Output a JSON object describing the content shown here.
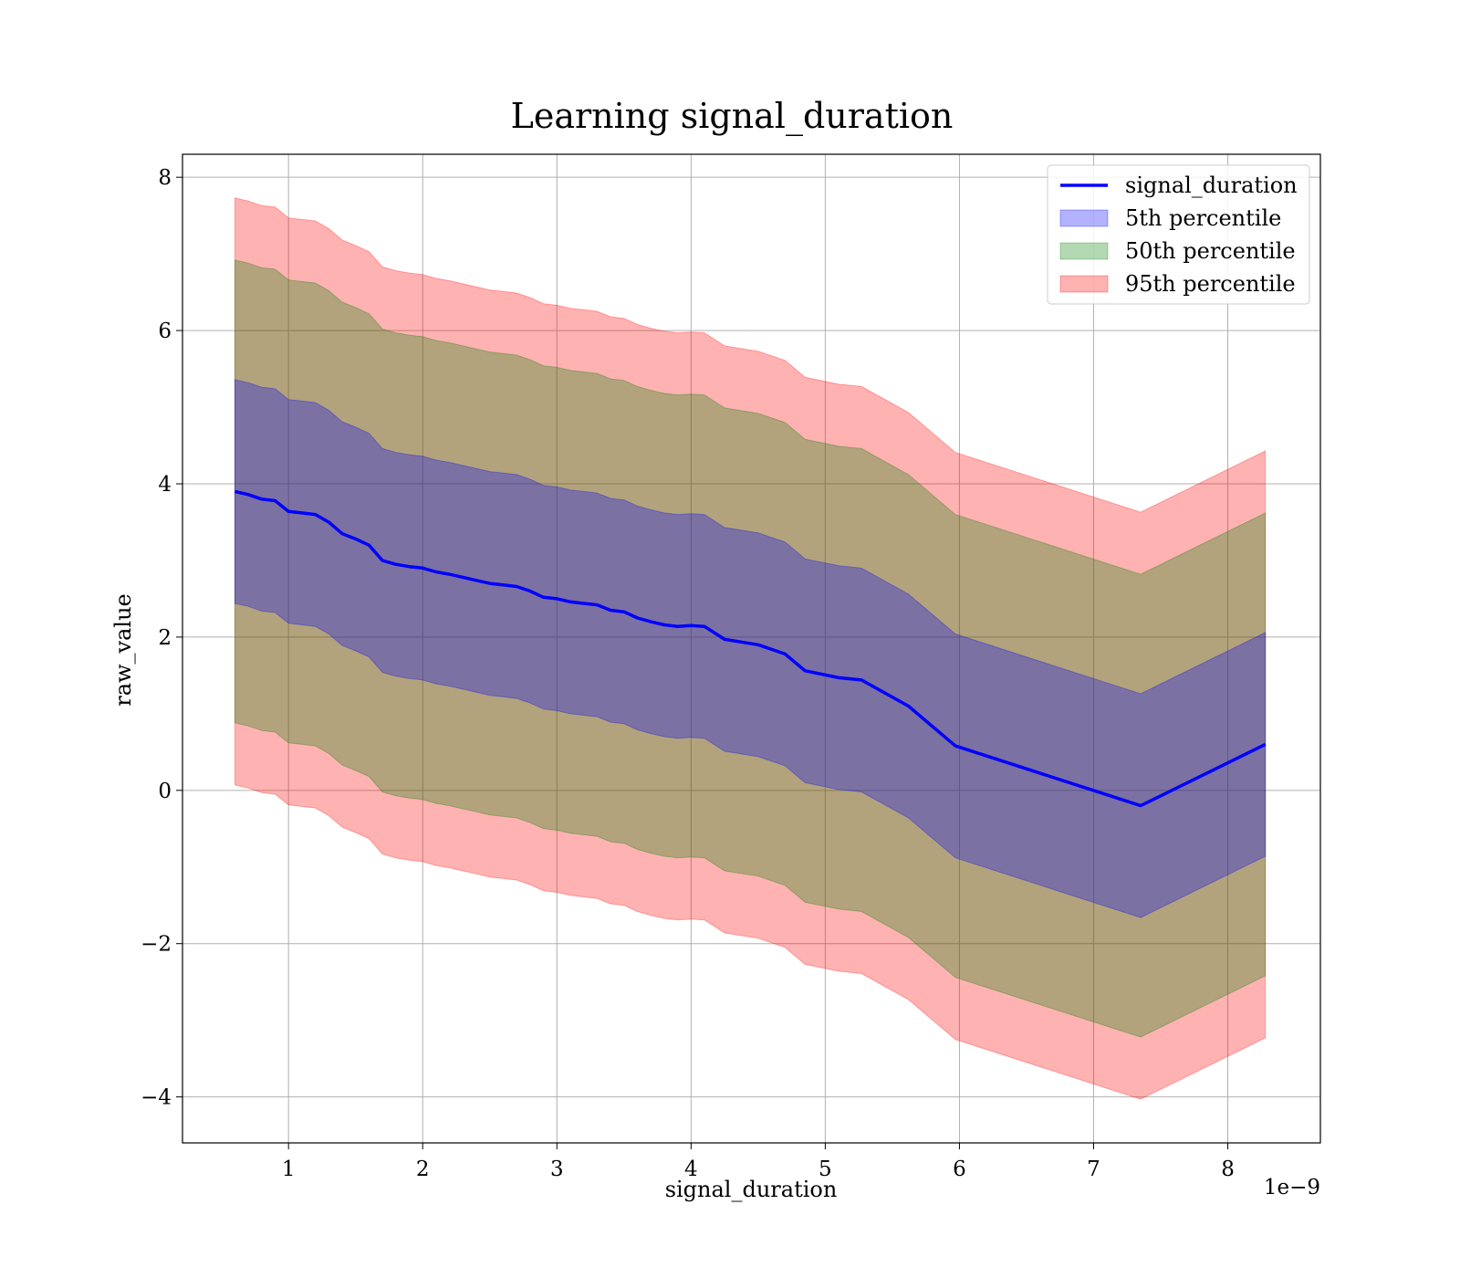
{
  "chart_data": {
    "type": "area",
    "title": "Learning signal_duration",
    "xlabel": "signal_duration",
    "ylabel": "raw_value",
    "x_offset_text": "1e−9",
    "xlim": [
      0.21,
      8.69
    ],
    "ylim": [
      -4.6,
      8.3
    ],
    "x_ticks": [
      1,
      2,
      3,
      4,
      5,
      6,
      7,
      8
    ],
    "y_ticks": [
      -4,
      -2,
      0,
      2,
      4,
      6,
      8
    ],
    "y_tick_labels": [
      "−4",
      "−2",
      "0",
      "2",
      "4",
      "6",
      "8"
    ],
    "grid": true,
    "legend_position": "top-right",
    "x": [
      0.6,
      0.7,
      0.8,
      0.9,
      1.0,
      1.1,
      1.2,
      1.3,
      1.4,
      1.5,
      1.6,
      1.7,
      1.8,
      1.9,
      2.0,
      2.1,
      2.2,
      2.3,
      2.4,
      2.5,
      2.6,
      2.7,
      2.8,
      2.9,
      3.0,
      3.1,
      3.2,
      3.3,
      3.4,
      3.5,
      3.6,
      3.7,
      3.8,
      3.9,
      4.0,
      4.1,
      4.25,
      4.5,
      4.7,
      4.85,
      5.1,
      5.27,
      5.62,
      5.97,
      7.35,
      8.28
    ],
    "series": [
      {
        "name": "signal_duration",
        "color": "#0000ff",
        "values": [
          3.9,
          3.86,
          3.8,
          3.78,
          3.64,
          3.62,
          3.6,
          3.5,
          3.35,
          3.28,
          3.2,
          3.0,
          2.95,
          2.92,
          2.9,
          2.85,
          2.82,
          2.78,
          2.74,
          2.7,
          2.68,
          2.66,
          2.6,
          2.52,
          2.5,
          2.46,
          2.44,
          2.42,
          2.35,
          2.33,
          2.25,
          2.2,
          2.16,
          2.14,
          2.15,
          2.14,
          1.97,
          1.9,
          1.78,
          1.56,
          1.47,
          1.44,
          1.1,
          0.58,
          -0.2,
          0.6
        ]
      }
    ],
    "bands": [
      {
        "name": "5th percentile",
        "color": "#0000ff",
        "opacity": 0.3,
        "offset": 1.46
      },
      {
        "name": "50th percentile",
        "color": "#008000",
        "opacity": 0.3,
        "offset": 3.02
      },
      {
        "name": "95th percentile",
        "color": "#ff0000",
        "opacity": 0.3,
        "offset": 3.83
      }
    ]
  }
}
